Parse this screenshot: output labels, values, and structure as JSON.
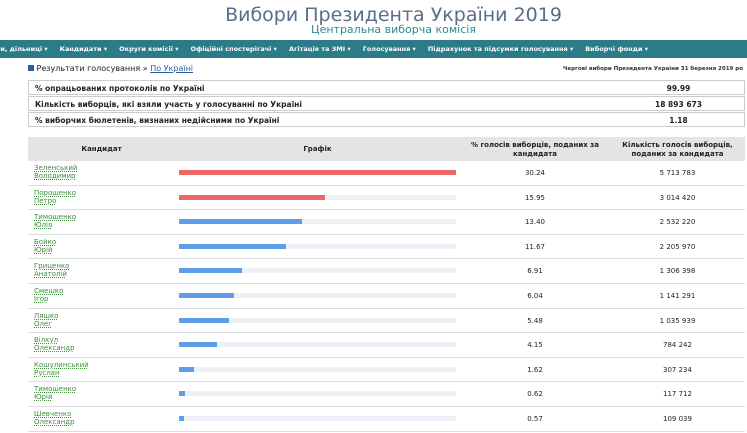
{
  "header": {
    "title": "Вибори Президента України 2019",
    "subtitle": "Центральна виборча комісія"
  },
  "nav": [
    "ги, дільниці ▾",
    "Кандидати ▾",
    "Округи комісії ▾",
    "Офіційні спостерігачі ▾",
    "Агітація та ЗМІ ▾",
    "Голосування ▾",
    "Підрахунок та підсумки голосування ▾",
    "Виборчі фонди ▾"
  ],
  "breadcrumb": {
    "section": "Результати голосування",
    "separator": "»",
    "current": "По Україні",
    "election": "Чергові вибори Президента України 31 березня 2019 ро"
  },
  "summary": [
    [
      "% опрацьованих протоколів по Україні",
      "99.99"
    ],
    [
      "Кількість виборців, які взяли участь у голосуванні по Україні",
      "18 893 673"
    ],
    [
      "% виборчих бюлетенів, визнаних недійсними по Україні",
      "1.18"
    ]
  ],
  "table": {
    "headers": [
      "Кандидат",
      "Графік",
      "% голосів виборців, поданих за кандидата",
      "Кількість голосів виборців, поданих за кандидата"
    ],
    "rows": [
      {
        "surname": "Зеленський",
        "name": "Володимир",
        "percent": 30.24,
        "percent_label": "30.24",
        "votes": "5 713 783",
        "color": "#ef6666"
      },
      {
        "surname": "Порошенко",
        "name": "Петро",
        "percent": 15.95,
        "percent_label": "15.95",
        "votes": "3 014 420",
        "color": "#ef6666"
      },
      {
        "surname": "Тимошенко",
        "name": "Юлія",
        "percent": 13.4,
        "percent_label": "13.40",
        "votes": "2 532 220",
        "color": "#5f9de6"
      },
      {
        "surname": "Бойко",
        "name": "Юрій",
        "percent": 11.67,
        "percent_label": "11.67",
        "votes": "2 205 970",
        "color": "#5f9de6"
      },
      {
        "surname": "Гриценко",
        "name": "Анатолій",
        "percent": 6.91,
        "percent_label": "6.91",
        "votes": "1 306 398",
        "color": "#5f9de6"
      },
      {
        "surname": "Смешко",
        "name": "Ігор",
        "percent": 6.04,
        "percent_label": "6.04",
        "votes": "1 141 291",
        "color": "#5f9de6"
      },
      {
        "surname": "Ляшко",
        "name": "Олег",
        "percent": 5.48,
        "percent_label": "5.48",
        "votes": "1 035 939",
        "color": "#5f9de6"
      },
      {
        "surname": "Вілкул",
        "name": "Олександр",
        "percent": 4.15,
        "percent_label": "4.15",
        "votes": "784 242",
        "color": "#5f9de6"
      },
      {
        "surname": "Кошулинський",
        "name": "Руслан",
        "percent": 1.62,
        "percent_label": "1.62",
        "votes": "307 234",
        "color": "#5f9de6"
      },
      {
        "surname": "Тимошенко",
        "name": "Юрій",
        "percent": 0.62,
        "percent_label": "0.62",
        "votes": "117 712",
        "color": "#5f9de6"
      },
      {
        "surname": "Шевченко",
        "name": "Олександр",
        "percent": 0.57,
        "percent_label": "0.57",
        "votes": "109 039",
        "color": "#5f9de6"
      }
    ]
  }
}
